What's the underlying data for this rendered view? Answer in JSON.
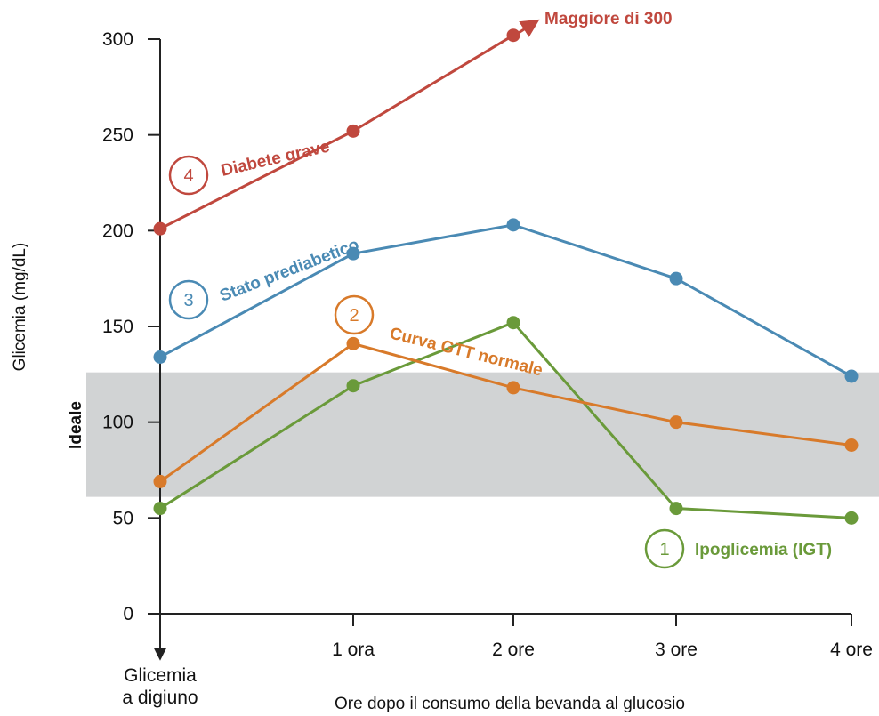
{
  "chart_data": {
    "type": "line",
    "ylabel": "Glicemia (mg/dL)",
    "xlabel": "Ore dopo il consumo della bevanda al glucosio",
    "ylim": [
      0,
      300
    ],
    "yticks": [
      0,
      50,
      100,
      150,
      200,
      250,
      300
    ],
    "x": [
      "Glicemia a digiuno",
      "1 ora",
      "2 ore",
      "3 ore",
      "4 ore"
    ],
    "x_label_lines": [
      [
        "Glicemia",
        "a digiuno"
      ],
      [
        "1 ora"
      ],
      [
        "2 ore"
      ],
      [
        "3 ore"
      ],
      [
        "4 ore"
      ]
    ],
    "ideal_band": {
      "label": "Ideale",
      "from": 61,
      "to": 126,
      "color": "#d1d3d4"
    },
    "series": [
      {
        "id": "1",
        "name": "Ipoglicemia (IGT)",
        "color": "#6a9a3a",
        "values": [
          55,
          119,
          152,
          55,
          50
        ]
      },
      {
        "id": "2",
        "name": "Curva GTT normale",
        "color": "#d87a2a",
        "values": [
          69,
          141,
          118,
          100,
          88
        ]
      },
      {
        "id": "3",
        "name": "Stato prediabetico",
        "color": "#4a8ab4",
        "values": [
          134,
          188,
          203,
          175,
          124
        ]
      },
      {
        "id": "4",
        "name": "Diabete grave",
        "color": "#c0483e",
        "values": [
          201,
          252,
          302,
          null,
          null
        ]
      }
    ],
    "annotations": {
      "arrow_text": "Maggiore di 300"
    },
    "grid": false,
    "legend": "none"
  }
}
